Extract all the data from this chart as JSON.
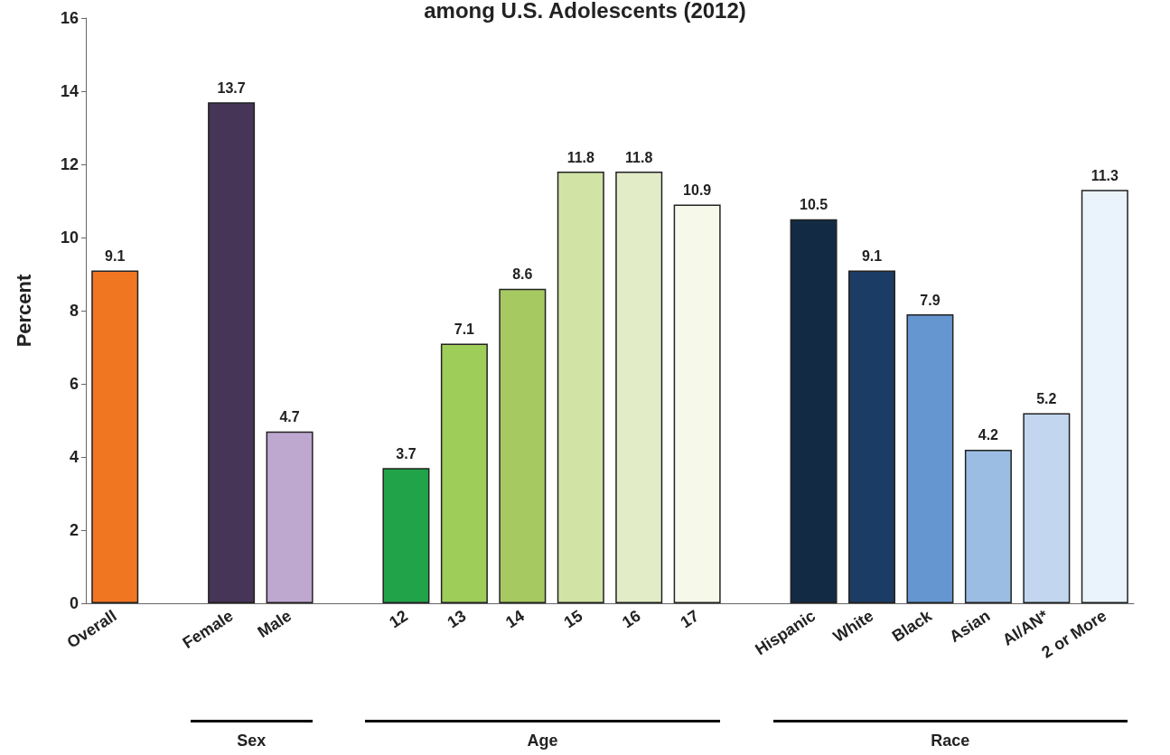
{
  "chart_data": {
    "type": "bar",
    "title": "among U.S. Adolescents (2012)",
    "ylabel": "Percent",
    "categories": [
      "Overall",
      null,
      "Female",
      "Male",
      null,
      "12",
      "13",
      "14",
      "15",
      "16",
      "17",
      null,
      "Hispanic",
      "White",
      "Black",
      "Asian",
      "AI/AN*",
      "2 or More"
    ],
    "values": [
      9.1,
      null,
      13.7,
      4.7,
      null,
      3.7,
      7.1,
      8.6,
      11.8,
      11.8,
      10.9,
      null,
      10.5,
      9.1,
      7.9,
      4.2,
      5.2,
      11.3
    ],
    "colors": [
      "#f07622",
      null,
      "#463557",
      "#bfa8d0",
      null,
      "#21a34a",
      "#9fcd5a",
      "#a7c962",
      "#d2e3a6",
      "#e2edc8",
      "#f6f9ea",
      null,
      "#132a45",
      "#1b3c64",
      "#6596d0",
      "#9bbde3",
      "#c2d7ef",
      "#eaf3fc"
    ],
    "ylim": [
      0,
      16
    ],
    "yticks": [
      0,
      2,
      4,
      6,
      8,
      10,
      12,
      14,
      16
    ],
    "grid": false,
    "data_labels": true,
    "annotations": [
      "Sex",
      "Age",
      "Race"
    ]
  }
}
